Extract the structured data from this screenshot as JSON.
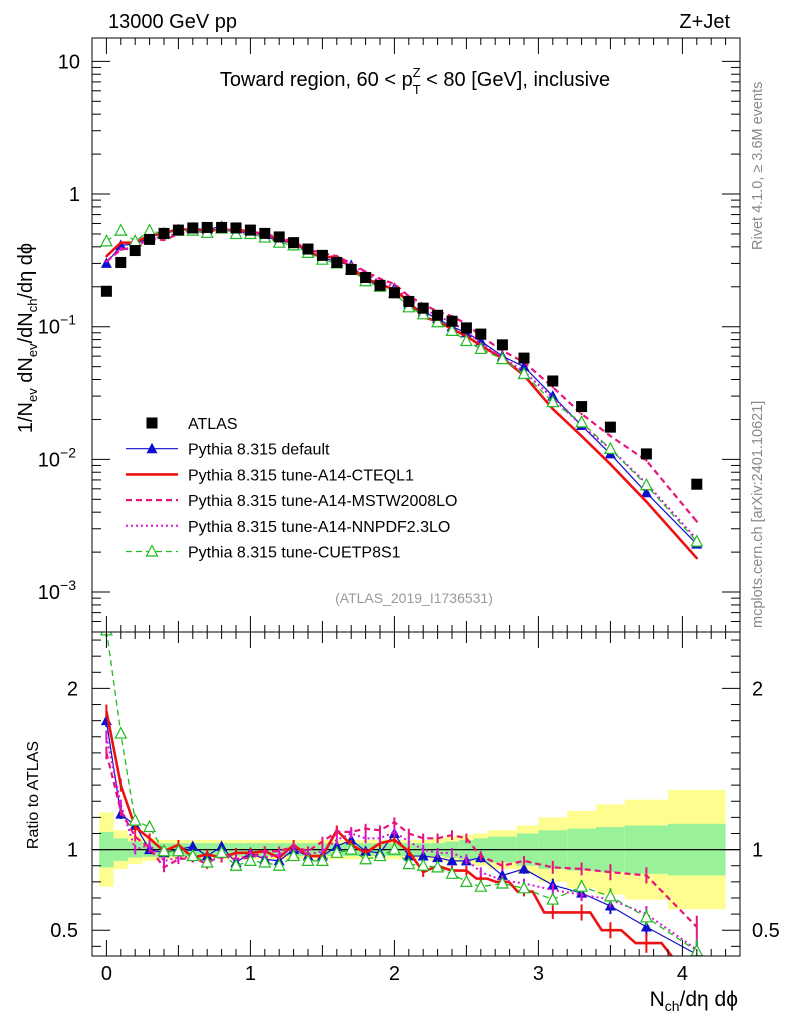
{
  "header": {
    "left": "13000 GeV pp",
    "right": "Z+Jet",
    "side_top": "Rivet 4.1.0, ≥ 3.6M events",
    "side_bottom": "mcplots.cern.ch [arXiv:2401.10621]",
    "analysis_id": "(ATLAS_2019_I1736531)"
  },
  "colors": {
    "atlas": "#000000",
    "default": "#1010cc",
    "cteql1": "#ee1111",
    "mstw": "#e8157a",
    "nnpdf": "#d613d6",
    "cuetp8s1": "#22bb22",
    "band_inner": "#99f299",
    "band_outer": "#fdfd90"
  },
  "chart_data": [
    {
      "type": "line",
      "title": "Toward region, 60 < p_T^Z < 80 [GeV], inclusive",
      "title_parts": {
        "pre": "Toward region, 60 < p",
        "sup": "Z",
        "sub": "T",
        "post": " < 80 [GeV], inclusive"
      },
      "ylabel": "1/N_ev dN_ev/dN_ch/dη dϕ",
      "yscale": "log",
      "ylim": [
        0.0005,
        15
      ],
      "xlim": [
        -0.1,
        4.4
      ],
      "y_ticks": [
        {
          "v": 10,
          "base": "10",
          "exp": ""
        },
        {
          "v": 1,
          "base": "1",
          "exp": ""
        },
        {
          "v": 0.1,
          "base": "10",
          "exp": "−1"
        },
        {
          "v": 0.01,
          "base": "10",
          "exp": "−2"
        },
        {
          "v": 0.001,
          "base": "10",
          "exp": "−3"
        }
      ],
      "x": [
        0.0,
        0.1,
        0.2,
        0.3,
        0.4,
        0.5,
        0.6,
        0.7,
        0.8,
        0.9,
        1.0,
        1.1,
        1.2,
        1.3,
        1.4,
        1.5,
        1.6,
        1.7,
        1.8,
        1.9,
        2.0,
        2.1,
        2.2,
        2.3,
        2.4,
        2.5,
        2.6,
        2.75,
        2.9,
        3.1,
        3.3,
        3.5,
        3.75,
        4.1
      ],
      "series": [
        {
          "name": "ATLAS",
          "key": "atlas",
          "style": "data",
          "values": [
            0.185,
            0.305,
            0.375,
            0.455,
            0.505,
            0.535,
            0.555,
            0.56,
            0.56,
            0.555,
            0.535,
            0.505,
            0.475,
            0.43,
            0.385,
            0.345,
            0.305,
            0.27,
            0.235,
            0.205,
            0.18,
            0.155,
            0.138,
            0.122,
            0.11,
            0.098,
            0.088,
            0.073,
            0.058,
            0.039,
            0.025,
            0.0175,
            0.011,
            0.0065
          ]
        },
        {
          "name": "Pythia 8.315 default",
          "key": "default",
          "style": "default",
          "values": [
            0.3,
            0.41,
            0.42,
            0.47,
            0.51,
            0.53,
            0.55,
            0.54,
            0.57,
            0.51,
            0.52,
            0.48,
            0.44,
            0.43,
            0.36,
            0.33,
            0.31,
            0.29,
            0.23,
            0.2,
            0.195,
            0.148,
            0.13,
            0.115,
            0.1,
            0.09,
            0.078,
            0.06,
            0.05,
            0.03,
            0.018,
            0.011,
            0.0056,
            0.0023
          ]
        },
        {
          "name": "Pythia 8.315 tune-A14-CTEQL1",
          "key": "cteql1",
          "style": "cteql1",
          "values": [
            0.34,
            0.43,
            0.43,
            0.49,
            0.5,
            0.55,
            0.53,
            0.54,
            0.53,
            0.54,
            0.52,
            0.5,
            0.45,
            0.44,
            0.37,
            0.33,
            0.34,
            0.28,
            0.23,
            0.21,
            0.19,
            0.155,
            0.118,
            0.11,
            0.096,
            0.085,
            0.072,
            0.058,
            0.043,
            0.024,
            0.015,
            0.0092,
            0.0048,
            0.0018
          ]
        },
        {
          "name": "Pythia 8.315 tune-A14-MSTW2008LO",
          "key": "mstw",
          "style": "mstw",
          "values": [
            0.31,
            0.38,
            0.4,
            0.46,
            0.45,
            0.5,
            0.53,
            0.51,
            0.55,
            0.52,
            0.51,
            0.5,
            0.47,
            0.44,
            0.38,
            0.36,
            0.34,
            0.3,
            0.26,
            0.23,
            0.21,
            0.17,
            0.148,
            0.13,
            0.12,
            0.105,
            0.085,
            0.066,
            0.054,
            0.035,
            0.022,
            0.015,
            0.0098,
            0.0034
          ]
        },
        {
          "name": "Pythia 8.315 tune-A14-NNPDF2.3LO",
          "key": "nnpdf",
          "style": "nnpdf",
          "values": [
            0.31,
            0.39,
            0.38,
            0.47,
            0.47,
            0.51,
            0.53,
            0.52,
            0.54,
            0.52,
            0.52,
            0.48,
            0.46,
            0.43,
            0.37,
            0.34,
            0.32,
            0.3,
            0.25,
            0.22,
            0.2,
            0.162,
            0.138,
            0.12,
            0.108,
            0.092,
            0.075,
            0.059,
            0.046,
            0.029,
            0.018,
            0.012,
            0.0066,
            0.0025
          ]
        },
        {
          "name": "Pythia 8.315 tune-CUETP8S1",
          "key": "cuetp8s1",
          "style": "cuetp8s1",
          "values": [
            0.44,
            0.53,
            0.44,
            0.53,
            0.5,
            0.53,
            0.53,
            0.51,
            0.55,
            0.5,
            0.5,
            0.47,
            0.43,
            0.41,
            0.36,
            0.32,
            0.3,
            0.27,
            0.22,
            0.2,
            0.18,
            0.14,
            0.124,
            0.108,
            0.093,
            0.078,
            0.068,
            0.057,
            0.044,
            0.027,
            0.019,
            0.012,
            0.0064,
            0.0024
          ]
        }
      ],
      "legend": [
        {
          "name": "ATLAS",
          "key": "atlas"
        },
        {
          "name": "Pythia 8.315 default",
          "key": "default"
        },
        {
          "name": "Pythia 8.315 tune-A14-CTEQL1",
          "key": "cteql1"
        },
        {
          "name": "Pythia 8.315 tune-A14-MSTW2008LO",
          "key": "mstw"
        },
        {
          "name": "Pythia 8.315 tune-A14-NNPDF2.3LO",
          "key": "nnpdf"
        },
        {
          "name": "Pythia 8.315 tune-CUETP8S1",
          "key": "cuetp8s1"
        }
      ],
      "legend_position": "lower-left"
    },
    {
      "type": "line",
      "title": "Ratio to ATLAS",
      "ylabel": "Ratio to ATLAS",
      "xlabel": "N_ch/dη dϕ",
      "xlabel_parts": {
        "main": "N",
        "sub": "ch",
        "rest": "/dη dϕ"
      },
      "yscale": "linear",
      "ylim": [
        0.34,
        2.35
      ],
      "xlim": [
        -0.1,
        4.4
      ],
      "x_ticks": [
        0,
        1,
        2,
        3,
        4
      ],
      "y_ticks": [
        0.5,
        1,
        2
      ],
      "y_tick_labels": [
        "0.5",
        "1",
        "2"
      ],
      "x": [
        0.0,
        0.1,
        0.2,
        0.3,
        0.4,
        0.5,
        0.6,
        0.7,
        0.8,
        0.9,
        1.0,
        1.1,
        1.2,
        1.3,
        1.4,
        1.5,
        1.6,
        1.7,
        1.8,
        1.9,
        2.0,
        2.1,
        2.2,
        2.3,
        2.4,
        2.5,
        2.6,
        2.75,
        2.9,
        3.1,
        3.3,
        3.5,
        3.75,
        4.1
      ],
      "band_edges": [
        -0.05,
        0.05,
        0.15,
        0.25,
        0.35,
        0.45,
        0.55,
        0.65,
        0.75,
        0.85,
        0.95,
        1.05,
        1.15,
        1.25,
        1.35,
        1.45,
        1.55,
        1.65,
        1.75,
        1.85,
        1.95,
        2.05,
        2.15,
        2.25,
        2.35,
        2.45,
        2.55,
        2.65,
        2.85,
        3.0,
        3.2,
        3.4,
        3.6,
        3.9,
        4.3
      ],
      "band_inner": [
        0.11,
        0.07,
        0.05,
        0.045,
        0.04,
        0.04,
        0.04,
        0.04,
        0.04,
        0.04,
        0.04,
        0.04,
        0.04,
        0.04,
        0.04,
        0.04,
        0.04,
        0.04,
        0.04,
        0.04,
        0.04,
        0.04,
        0.04,
        0.04,
        0.05,
        0.06,
        0.07,
        0.08,
        0.1,
        0.12,
        0.13,
        0.14,
        0.15,
        0.16
      ],
      "band_outer": [
        0.23,
        0.12,
        0.09,
        0.07,
        0.06,
        0.06,
        0.06,
        0.06,
        0.06,
        0.06,
        0.06,
        0.06,
        0.06,
        0.06,
        0.06,
        0.06,
        0.06,
        0.06,
        0.06,
        0.06,
        0.06,
        0.06,
        0.06,
        0.07,
        0.08,
        0.09,
        0.1,
        0.12,
        0.15,
        0.2,
        0.24,
        0.28,
        0.31,
        0.37
      ],
      "series": [
        {
          "name": "Pythia 8.315 default",
          "key": "default",
          "style": "default",
          "values": [
            1.8,
            1.22,
            1.15,
            1.0,
            0.98,
            1.0,
            1.02,
            0.96,
            1.02,
            0.92,
            0.98,
            0.94,
            0.93,
            1.0,
            0.96,
            0.96,
            1.02,
            1.06,
            0.99,
            0.98,
            1.1,
            0.96,
            0.96,
            0.95,
            0.93,
            0.93,
            0.95,
            0.84,
            0.88,
            0.78,
            0.73,
            0.65,
            0.52,
            0.35
          ],
          "err": [
            0.04,
            0.03,
            0.02,
            0.02,
            0.02,
            0.02,
            0.02,
            0.02,
            0.02,
            0.02,
            0.02,
            0.02,
            0.02,
            0.02,
            0.02,
            0.02,
            0.02,
            0.02,
            0.02,
            0.02,
            0.02,
            0.02,
            0.02,
            0.02,
            0.02,
            0.02,
            0.03,
            0.03,
            0.03,
            0.04,
            0.04,
            0.05,
            0.06,
            0.08
          ]
        },
        {
          "name": "Pythia 8.315 tune-A14-CTEQL1",
          "key": "cteql1",
          "style": "cteql1",
          "values": [
            1.86,
            1.4,
            1.14,
            1.07,
            0.99,
            1.03,
            0.95,
            0.97,
            0.95,
            0.98,
            0.98,
            0.99,
            0.95,
            1.03,
            0.96,
            0.96,
            1.12,
            1.03,
            0.98,
            1.04,
            1.06,
            0.99,
            0.86,
            0.9,
            0.87,
            0.87,
            0.82,
            0.8,
            0.74,
            0.61,
            0.61,
            0.5,
            0.42,
            0.26
          ],
          "err": [
            0.04,
            0.04,
            0.03,
            0.03,
            0.03,
            0.03,
            0.03,
            0.03,
            0.03,
            0.03,
            0.03,
            0.03,
            0.03,
            0.03,
            0.03,
            0.03,
            0.03,
            0.03,
            0.03,
            0.03,
            0.03,
            0.03,
            0.03,
            0.03,
            0.03,
            0.03,
            0.03,
            0.03,
            0.03,
            0.04,
            0.05,
            0.05,
            0.06,
            0.08
          ]
        },
        {
          "name": "Pythia 8.315 tune-A14-MSTW2008LO",
          "key": "mstw",
          "style": "mstw",
          "values": [
            1.6,
            1.24,
            1.08,
            1.01,
            0.89,
            0.94,
            0.95,
            0.91,
            0.98,
            0.94,
            0.95,
            0.99,
            0.99,
            1.02,
            0.99,
            1.05,
            1.11,
            1.11,
            1.13,
            1.12,
            1.17,
            1.1,
            1.07,
            1.07,
            1.09,
            1.07,
            0.96,
            0.9,
            0.93,
            0.89,
            0.88,
            0.86,
            0.84,
            0.52
          ],
          "err": [
            0.04,
            0.03,
            0.03,
            0.03,
            0.03,
            0.03,
            0.03,
            0.03,
            0.03,
            0.03,
            0.03,
            0.03,
            0.03,
            0.03,
            0.03,
            0.03,
            0.03,
            0.03,
            0.03,
            0.03,
            0.03,
            0.03,
            0.03,
            0.03,
            0.03,
            0.03,
            0.03,
            0.03,
            0.03,
            0.04,
            0.04,
            0.05,
            0.05,
            0.07
          ]
        },
        {
          "name": "Pythia 8.315 tune-A14-NNPDF2.3LO",
          "key": "nnpdf",
          "style": "nnpdf",
          "values": [
            1.7,
            1.28,
            1.0,
            1.03,
            0.93,
            0.95,
            0.96,
            0.92,
            0.96,
            0.94,
            0.97,
            0.95,
            0.97,
            1.0,
            0.97,
            0.99,
            1.06,
            1.1,
            1.07,
            1.07,
            1.11,
            1.05,
            1.0,
            0.98,
            0.98,
            0.94,
            0.86,
            0.81,
            0.79,
            0.75,
            0.72,
            0.69,
            0.6,
            0.38
          ],
          "err": [
            0.04,
            0.03,
            0.03,
            0.03,
            0.03,
            0.03,
            0.03,
            0.03,
            0.03,
            0.03,
            0.03,
            0.03,
            0.03,
            0.03,
            0.03,
            0.03,
            0.03,
            0.03,
            0.03,
            0.03,
            0.03,
            0.03,
            0.03,
            0.03,
            0.03,
            0.03,
            0.03,
            0.03,
            0.03,
            0.04,
            0.04,
            0.05,
            0.05,
            0.07
          ]
        },
        {
          "name": "Pythia 8.315 tune-CUETP8S1",
          "key": "cuetp8s1",
          "style": "cuetp8s1",
          "values": [
            2.36,
            1.72,
            1.18,
            1.14,
            0.99,
            0.99,
            0.96,
            0.92,
            0.98,
            0.9,
            0.93,
            0.92,
            0.9,
            0.96,
            0.93,
            0.93,
            0.98,
            1.0,
            0.94,
            0.96,
            1.0,
            0.91,
            0.9,
            0.89,
            0.85,
            0.8,
            0.77,
            0.79,
            0.76,
            0.69,
            0.77,
            0.71,
            0.58,
            0.37
          ],
          "err": [
            0.04,
            0.03,
            0.03,
            0.03,
            0.03,
            0.03,
            0.03,
            0.03,
            0.03,
            0.03,
            0.03,
            0.03,
            0.03,
            0.03,
            0.03,
            0.03,
            0.03,
            0.03,
            0.03,
            0.03,
            0.03,
            0.03,
            0.03,
            0.03,
            0.03,
            0.03,
            0.03,
            0.03,
            0.03,
            0.04,
            0.04,
            0.05,
            0.05,
            0.07
          ]
        }
      ]
    }
  ]
}
